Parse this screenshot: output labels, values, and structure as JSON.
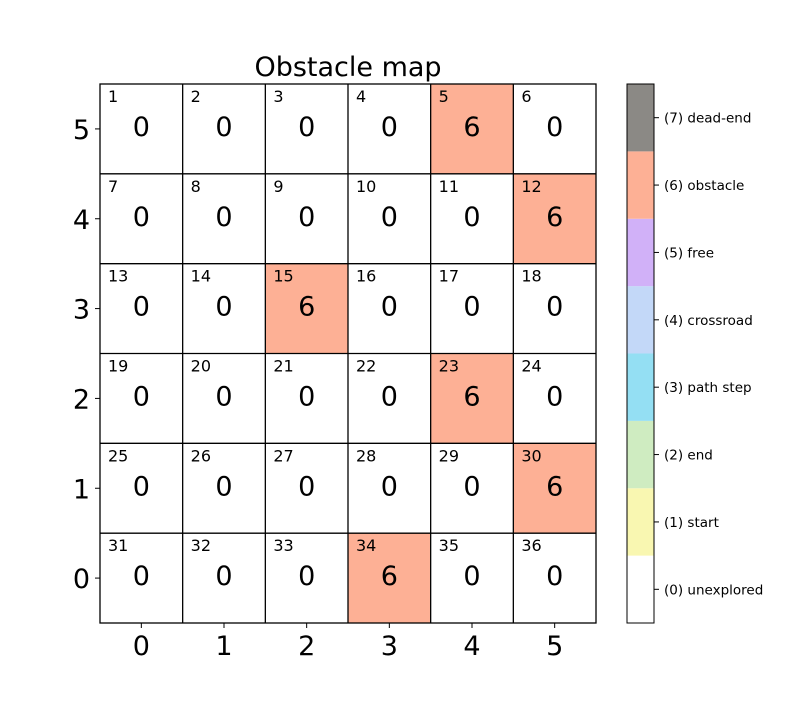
{
  "chart_data": {
    "type": "heatmap",
    "title": "Obstacle map",
    "x_ticks": [
      "0",
      "1",
      "2",
      "3",
      "4",
      "5"
    ],
    "y_ticks": [
      "5",
      "4",
      "3",
      "2",
      "1",
      "0"
    ],
    "grid": [
      [
        0,
        0,
        0,
        0,
        6,
        0
      ],
      [
        0,
        0,
        0,
        0,
        0,
        6
      ],
      [
        0,
        0,
        6,
        0,
        0,
        0
      ],
      [
        0,
        0,
        0,
        0,
        6,
        0
      ],
      [
        0,
        0,
        0,
        0,
        0,
        6
      ],
      [
        0,
        0,
        0,
        6,
        0,
        0
      ]
    ],
    "cell_ids": [
      [
        1,
        2,
        3,
        4,
        5,
        6
      ],
      [
        7,
        8,
        9,
        10,
        11,
        12
      ],
      [
        13,
        14,
        15,
        16,
        17,
        18
      ],
      [
        19,
        20,
        21,
        22,
        23,
        24
      ],
      [
        25,
        26,
        27,
        28,
        29,
        30
      ],
      [
        31,
        32,
        33,
        34,
        35,
        36
      ]
    ],
    "colorbar": [
      {
        "value": 0,
        "label": "(0) unexplored",
        "color": "#ffffff"
      },
      {
        "value": 1,
        "label": "(1) start",
        "color": "#f9f7b1"
      },
      {
        "value": 2,
        "label": "(2) end",
        "color": "#cfecc1"
      },
      {
        "value": 3,
        "label": "(3) path step",
        "color": "#94dff3"
      },
      {
        "value": 4,
        "label": "(4) crossroad",
        "color": "#c3d8f8"
      },
      {
        "value": 5,
        "label": "(5) free",
        "color": "#d1b1f8"
      },
      {
        "value": 6,
        "label": "(6) obstacle",
        "color": "#fdb095"
      },
      {
        "value": 7,
        "label": "(7) dead-end",
        "color": "#8b8985"
      }
    ]
  }
}
